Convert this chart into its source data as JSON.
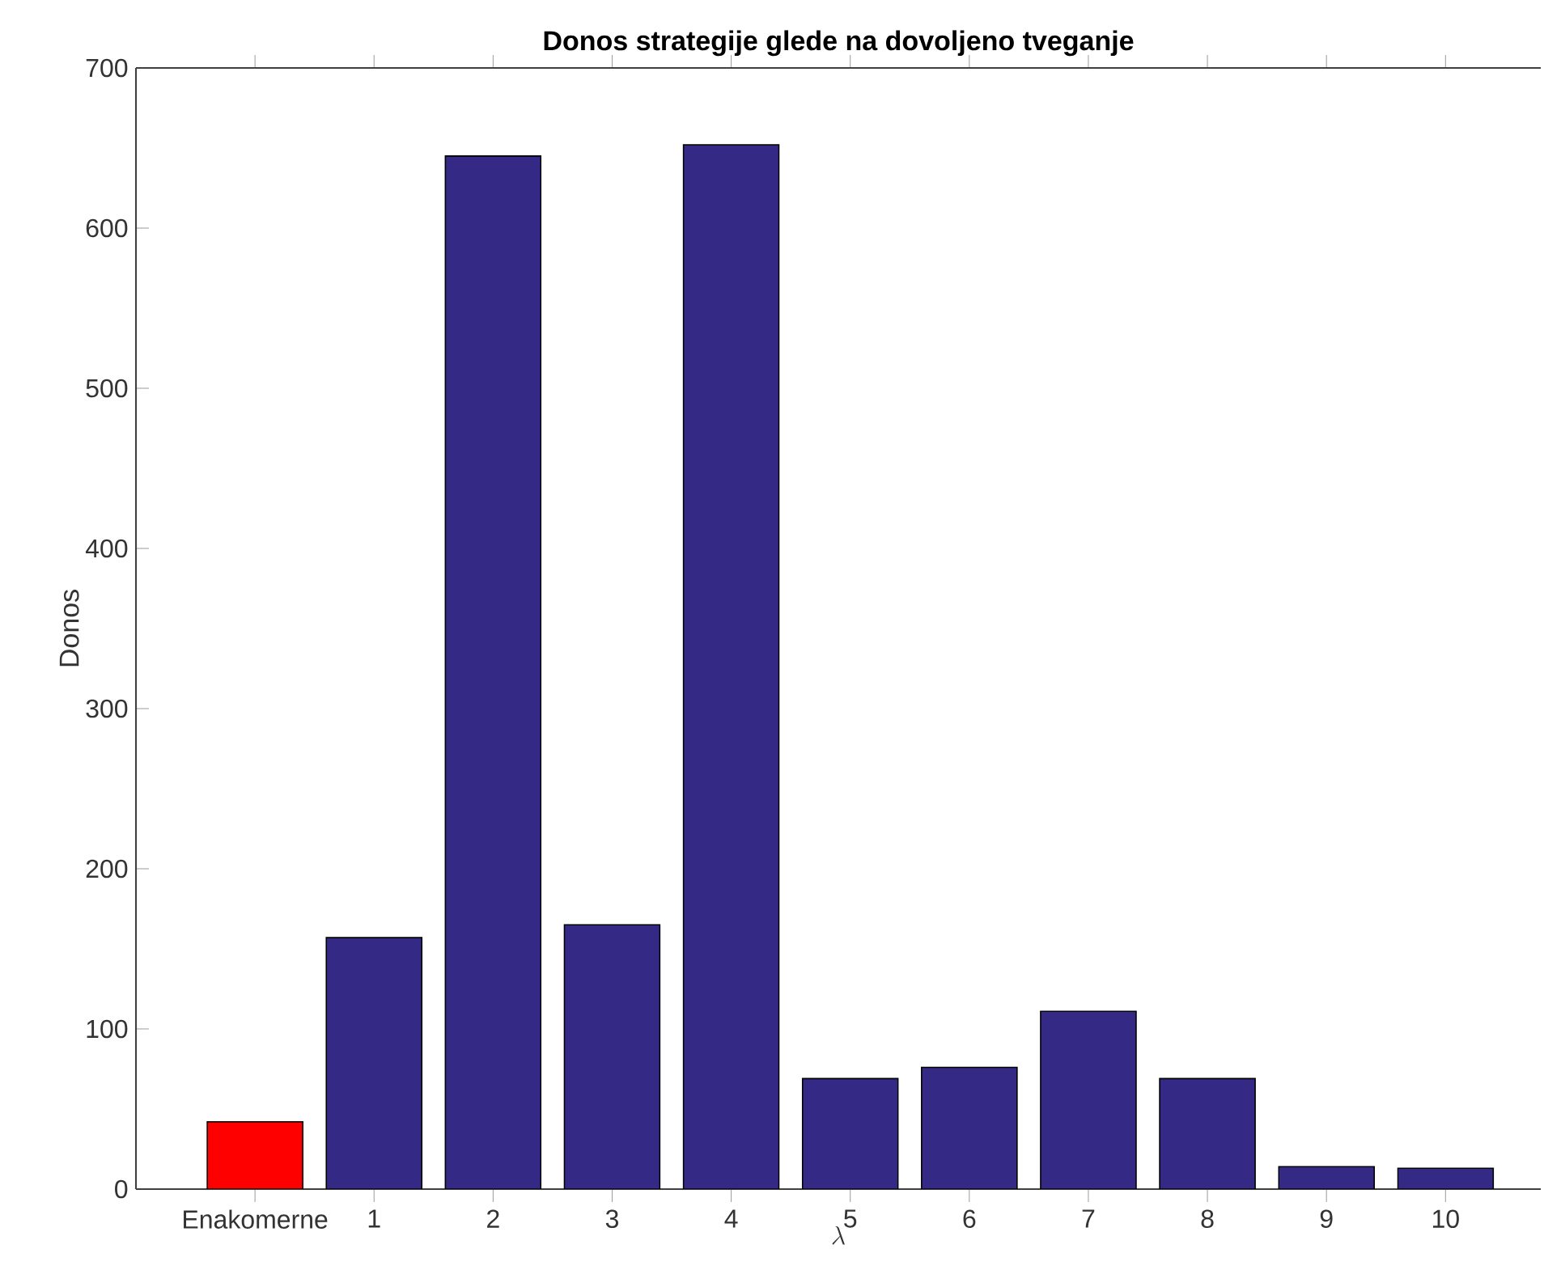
{
  "chart_data": {
    "type": "bar",
    "title": "Donos strategije glede na dovoljeno tveganje",
    "xlabel": "\\lambda",
    "ylabel": "Donos",
    "categories": [
      "Enakomerne",
      "1",
      "2",
      "3",
      "4",
      "5",
      "6",
      "7",
      "8",
      "9",
      "10"
    ],
    "values": [
      42,
      157,
      645,
      165,
      652,
      69,
      76,
      111,
      69,
      14,
      13
    ],
    "colors": [
      "#ff0000",
      "#342a85",
      "#342a85",
      "#342a85",
      "#342a85",
      "#342a85",
      "#342a85",
      "#342a85",
      "#342a85",
      "#342a85",
      "#342a85"
    ],
    "ylim": [
      0,
      700
    ],
    "yticks": [
      0,
      100,
      200,
      300,
      400,
      500,
      600,
      700
    ],
    "grid": false
  }
}
